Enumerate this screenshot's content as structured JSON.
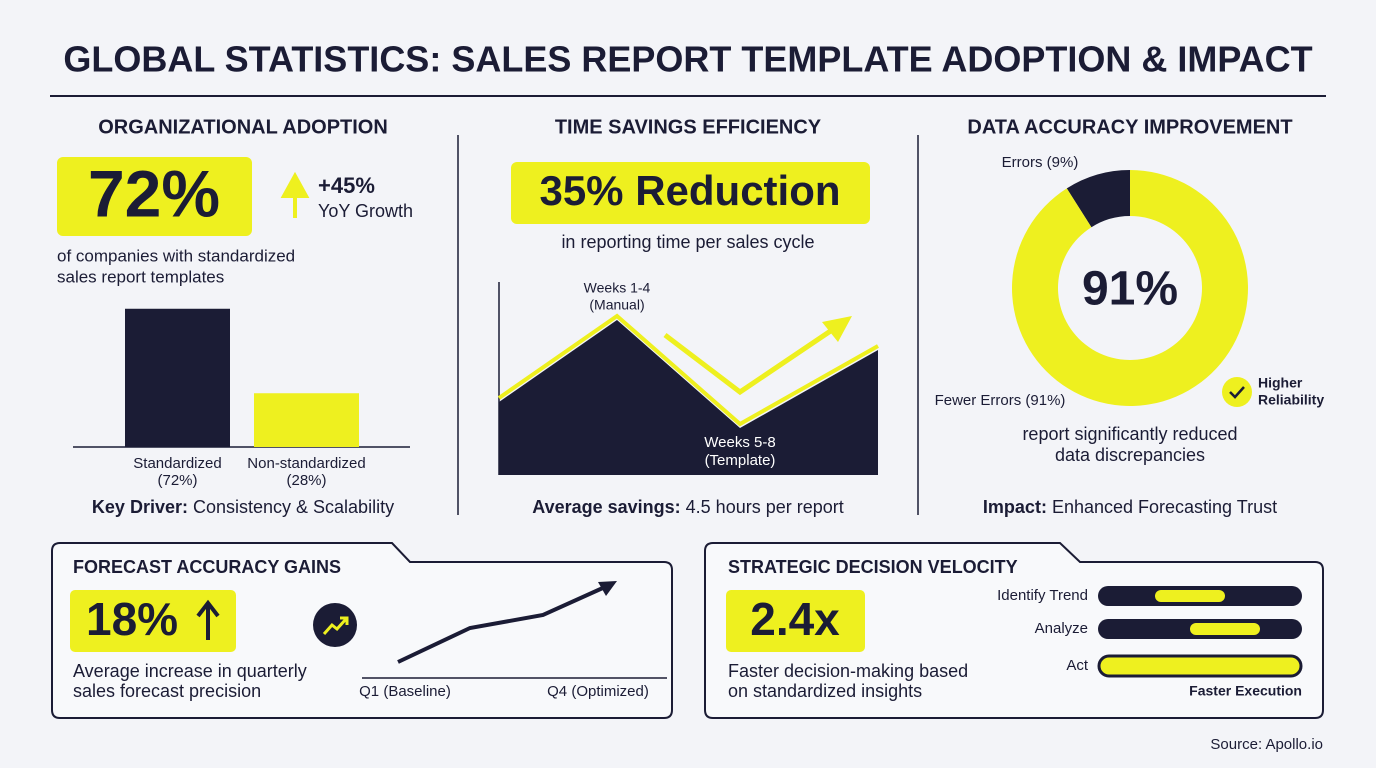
{
  "title": "GLOBAL STATISTICS: SALES REPORT TEMPLATE ADOPTION & IMPACT",
  "adoption": {
    "heading": "ORGANIZATIONAL ADOPTION",
    "big_stat": "72%",
    "growth": "+45%",
    "growth_label": "YoY Growth",
    "description": [
      "of companies with standardized",
      "sales report templates"
    ],
    "footer_key": "Key Driver:",
    "footer_text": "Consistency & Scalability"
  },
  "time_savings": {
    "heading": "TIME SAVINGS EFFICIENCY",
    "big_stat": "35% Reduction",
    "description": "in reporting time per sales cycle",
    "annotation_manual": [
      "Weeks 1-4",
      "(Manual)"
    ],
    "annotation_template": [
      "Weeks 5-8",
      "(Template)"
    ],
    "footer_key": "Average savings:",
    "footer_text": "4.5 hours per report"
  },
  "accuracy": {
    "heading": "DATA ACCURACY IMPROVEMENT",
    "center_label": "91%",
    "badge": [
      "Higher",
      "Reliability"
    ],
    "description": [
      "report significantly reduced",
      "data discrepancies"
    ],
    "footer_key": "Impact:",
    "footer_text": "Enhanced Forecasting Trust"
  },
  "forecast": {
    "heading": "FORECAST ACCURACY GAINS",
    "big_stat": "18%",
    "description": [
      "Average increase in quarterly",
      "sales forecast precision"
    ],
    "start_label": "Q1 (Baseline)",
    "end_label": "Q4 (Optimized)"
  },
  "velocity": {
    "heading": "STRATEGIC DECISION VELOCITY",
    "big_stat": "2.4x",
    "description": [
      "Faster decision-making based",
      "on standardized insights"
    ],
    "steps": [
      "Identify Trend",
      "Analyze",
      "Act"
    ],
    "caption": "Faster Execution"
  },
  "source": "Source: Apollo.io",
  "chart_data": [
    {
      "type": "bar",
      "categories": [
        "Standardized",
        "Non-standardized"
      ],
      "values": [
        72,
        28
      ],
      "value_labels": [
        "(72%)",
        "(28%)"
      ],
      "colors": [
        "#1b1c35",
        "#eef01f"
      ]
    },
    {
      "type": "pie",
      "values": [
        9,
        91
      ],
      "value_labels": [
        "Errors (9%)",
        "Fewer Errors (91%)"
      ],
      "colors": [
        "#1b1c35",
        "#eef01f"
      ]
    }
  ]
}
